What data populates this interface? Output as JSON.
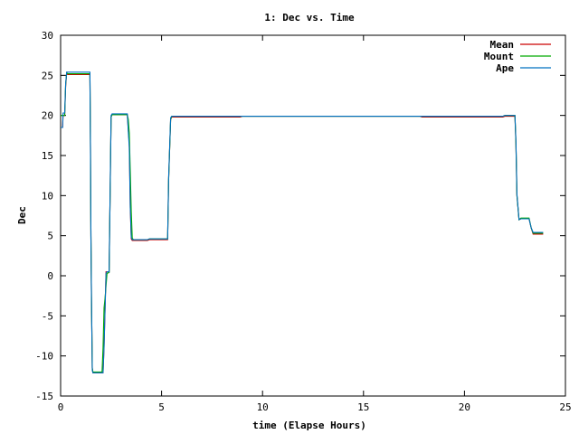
{
  "chart_data": {
    "type": "line",
    "title": "1: Dec vs. Time",
    "xlabel": "time (Elapse Hours)",
    "ylabel": "Dec",
    "xlim": [
      0,
      25
    ],
    "ylim": [
      -15,
      30
    ],
    "xticks": [
      "0",
      "5",
      "10",
      "15",
      "20",
      "25"
    ],
    "yticks": [
      "-15",
      "-10",
      "-5",
      "0",
      "5",
      "10",
      "15",
      "20",
      "25",
      "30"
    ],
    "grid": false,
    "legend_position": "top-right",
    "series": [
      {
        "name": "Mean",
        "color": "#cc0000",
        "x": [
          0.0,
          0.1,
          0.12,
          0.2,
          0.25,
          0.3,
          0.35,
          1.45,
          1.48,
          1.5,
          1.53,
          1.57,
          1.6,
          2.1,
          2.15,
          2.25,
          2.3,
          2.4,
          2.45,
          2.5,
          2.55,
          3.3,
          3.4,
          3.45,
          3.5,
          3.55,
          3.6,
          4.3,
          4.4,
          5.3,
          5.35,
          5.45,
          5.5,
          8.9,
          9.0,
          17.8,
          17.9,
          21.9,
          22.0,
          22.5,
          22.55,
          22.6,
          22.7,
          22.8,
          23.2,
          23.3,
          23.4,
          23.9
        ],
        "y": [
          18.5,
          18.5,
          20.0,
          20.0,
          23.7,
          25.3,
          25.1,
          25.1,
          16.0,
          5.0,
          -2.7,
          -11.5,
          -12.1,
          -12.1,
          -8.8,
          0.5,
          0.5,
          0.5,
          10.0,
          19.8,
          20.1,
          20.1,
          16.5,
          8.5,
          4.6,
          4.4,
          4.4,
          4.4,
          4.5,
          4.5,
          12.0,
          19.5,
          19.8,
          19.8,
          19.9,
          19.9,
          19.8,
          19.8,
          19.9,
          19.9,
          16.5,
          10.0,
          7.0,
          7.1,
          7.1,
          6.0,
          5.2,
          5.2
        ]
      },
      {
        "name": "Mount",
        "color": "#00aa00",
        "x": [
          0.0,
          0.1,
          0.12,
          0.2,
          0.25,
          0.3,
          0.35,
          1.45,
          1.48,
          1.5,
          1.53,
          1.57,
          1.6,
          2.05,
          2.1,
          2.15,
          2.2,
          2.3,
          2.4,
          2.45,
          2.5,
          2.55,
          3.3,
          3.35,
          3.4,
          3.45,
          3.5,
          3.55,
          3.6,
          4.3,
          4.4,
          5.3,
          5.35,
          5.45,
          5.5,
          8.9,
          9.0,
          17.8,
          17.9,
          21.9,
          22.0,
          22.5,
          22.55,
          22.6,
          22.7,
          22.8,
          23.2,
          23.3,
          23.4,
          23.9
        ],
        "y": [
          20.0,
          20.0,
          20.0,
          20.0,
          24.0,
          25.3,
          25.2,
          25.2,
          16.0,
          5.0,
          -2.7,
          -11.5,
          -12.0,
          -12.0,
          -9.0,
          -4.0,
          -2.8,
          0.3,
          0.4,
          10.0,
          19.8,
          20.1,
          20.1,
          19.5,
          17.8,
          13.0,
          8.0,
          4.7,
          4.5,
          4.5,
          4.6,
          4.6,
          12.0,
          19.5,
          19.9,
          19.9,
          19.9,
          19.9,
          19.9,
          19.9,
          20.0,
          20.0,
          16.5,
          10.0,
          7.0,
          7.2,
          7.2,
          6.0,
          5.3,
          5.3
        ]
      },
      {
        "name": "Ape",
        "color": "#0070c0",
        "x": [
          0.0,
          0.1,
          0.12,
          0.2,
          0.25,
          0.3,
          0.35,
          1.45,
          1.48,
          1.5,
          1.53,
          1.57,
          1.6,
          2.1,
          2.15,
          2.25,
          2.3,
          2.4,
          2.45,
          2.5,
          2.55,
          3.3,
          3.35,
          3.4,
          3.45,
          3.5,
          3.55,
          3.6,
          4.3,
          4.4,
          5.3,
          5.35,
          5.45,
          5.5,
          8.9,
          9.0,
          17.8,
          17.9,
          21.9,
          22.0,
          22.5,
          22.55,
          22.6,
          22.7,
          22.8,
          23.2,
          23.3,
          23.4,
          23.9
        ],
        "y": [
          18.5,
          18.5,
          20.3,
          20.3,
          24.0,
          25.4,
          25.4,
          25.4,
          16.0,
          5.0,
          -2.5,
          -11.8,
          -12.1,
          -12.1,
          -9.0,
          0.3,
          0.5,
          0.5,
          10.2,
          20.0,
          20.2,
          20.2,
          18.0,
          16.0,
          8.5,
          4.8,
          4.5,
          4.5,
          4.5,
          4.6,
          4.6,
          12.2,
          19.7,
          19.9,
          19.9,
          19.9,
          19.9,
          19.9,
          19.9,
          20.0,
          20.0,
          16.8,
          10.2,
          7.0,
          7.1,
          7.1,
          6.0,
          5.4,
          5.4
        ]
      }
    ]
  }
}
